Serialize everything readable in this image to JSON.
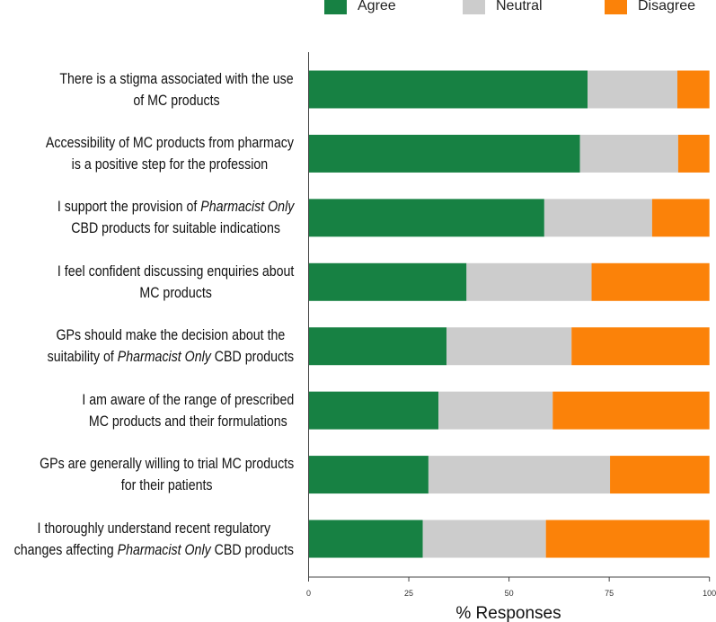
{
  "chart_data": {
    "type": "bar",
    "orientation": "horizontal",
    "stacked": true,
    "xlabel": "% Responses",
    "xlim": [
      0,
      100
    ],
    "xticks": [
      "0",
      "25",
      "50",
      "75",
      "100"
    ],
    "grid": false,
    "legend_placement": "top",
    "categories": [
      [
        [
          {
            "t": "There is a stigma associated with the use"
          }
        ],
        [
          {
            "t": "of MC products"
          }
        ]
      ],
      [
        [
          {
            "t": "Accessibility of MC products from pharmacy"
          }
        ],
        [
          {
            "t": "is a positive step for the profession"
          }
        ]
      ],
      [
        [
          {
            "t": "I support the provision of "
          },
          {
            "t": "Pharmacist Only",
            "i": true
          }
        ],
        [
          {
            "t": "CBD products for suitable indications"
          }
        ]
      ],
      [
        [
          {
            "t": "I feel confident discussing enquiries about"
          }
        ],
        [
          {
            "t": "MC products"
          }
        ]
      ],
      [
        [
          {
            "t": "GPs should make the decision about the"
          }
        ],
        [
          {
            "t": "suitability of "
          },
          {
            "t": "Pharmacist Only",
            "i": true
          },
          {
            "t": " CBD products"
          }
        ]
      ],
      [
        [
          {
            "t": "I am aware of the range of prescribed"
          }
        ],
        [
          {
            "t": "MC products and their formulations"
          }
        ]
      ],
      [
        [
          {
            "t": "GPs are generally willing to trial MC products"
          }
        ],
        [
          {
            "t": "for their patients"
          }
        ]
      ],
      [
        [
          {
            "t": "I thoroughly understand recent regulatory"
          }
        ],
        [
          {
            "t": "changes affecting "
          },
          {
            "t": "Pharmacist Only",
            "i": true
          },
          {
            "t": " CBD products"
          }
        ]
      ]
    ],
    "series": [
      {
        "name": "Agree",
        "color": "#178143",
        "values": [
          69.6,
          67.7,
          58.8,
          39.4,
          34.4,
          32.4,
          29.9,
          28.5
        ]
      },
      {
        "name": "Neutral",
        "color": "#cccccc",
        "values": [
          22.4,
          24.5,
          26.9,
          31.2,
          31.2,
          28.5,
          45.3,
          30.7
        ]
      },
      {
        "name": "Disagree",
        "color": "#fb8209",
        "values": [
          8.0,
          7.8,
          14.3,
          29.4,
          34.4,
          39.1,
          24.8,
          40.8
        ]
      }
    ]
  }
}
